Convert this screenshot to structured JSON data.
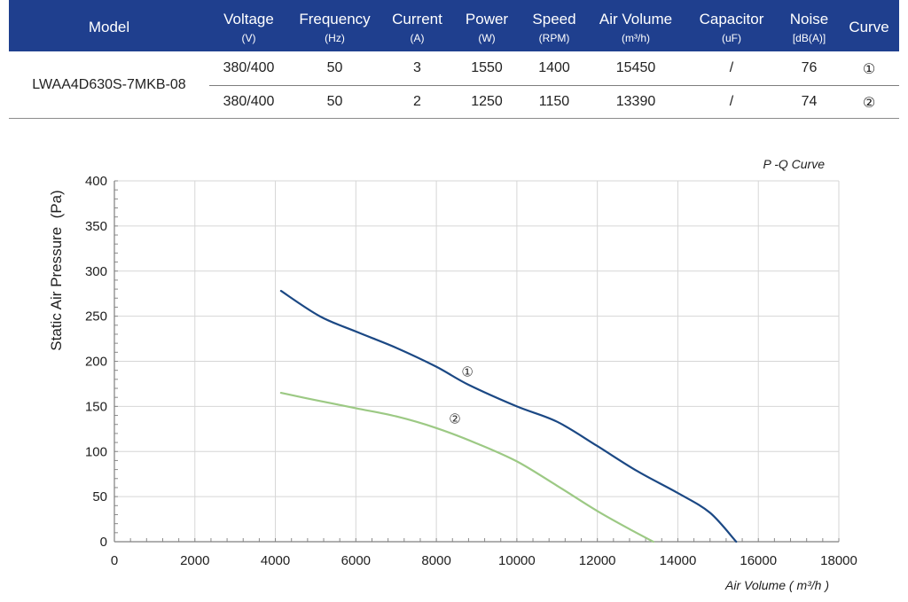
{
  "colors": {
    "header_bg": "#1f3f8e",
    "header_text": "#ffffff"
  },
  "spec_table": {
    "columns": [
      {
        "label": "Model"
      },
      {
        "label": "Voltage",
        "unit": "(V)"
      },
      {
        "label": "Frequency",
        "unit": "(Hz)"
      },
      {
        "label": "Current",
        "unit": "(A)"
      },
      {
        "label": "Power",
        "unit": "(W)"
      },
      {
        "label": "Speed",
        "unit": "(RPM)"
      },
      {
        "label": "Air Volume",
        "unit": "(m³/h)"
      },
      {
        "label": "Capacitor",
        "unit": "(uF)"
      },
      {
        "label": "Noise",
        "unit": "[dB(A)]"
      },
      {
        "label": "Curve"
      }
    ],
    "model": "LWAA4D630S-7MKB-08",
    "rows": [
      {
        "voltage": "380/400",
        "frequency": "50",
        "current": "3",
        "power": "1550",
        "speed": "1400",
        "air_volume": "15450",
        "capacitor": "/",
        "noise": "76",
        "curve": "①"
      },
      {
        "voltage": "380/400",
        "frequency": "50",
        "current": "2",
        "power": "1250",
        "speed": "1150",
        "air_volume": "13390",
        "capacitor": "/",
        "noise": "74",
        "curve": "②"
      }
    ]
  },
  "chart_data": {
    "type": "line",
    "title": "P -Q Curve",
    "xlabel": "Air Volume ( m³/h )",
    "ylabel": "Static Air Pressure  (Pa)",
    "xlim": [
      0,
      18000
    ],
    "ylim": [
      0,
      400
    ],
    "xticks": [
      0,
      2000,
      4000,
      6000,
      8000,
      10000,
      12000,
      14000,
      16000,
      18000
    ],
    "yticks": [
      0,
      50,
      100,
      150,
      200,
      250,
      300,
      350,
      400
    ],
    "grid": true,
    "series": [
      {
        "name": "①",
        "color": "#1b4884",
        "x": [
          4140,
          5100,
          6000,
          7000,
          8000,
          8800,
          10000,
          11000,
          12000,
          13000,
          14000,
          14800,
          15450
        ],
        "y": [
          278,
          250,
          233,
          215,
          194,
          174,
          150,
          133,
          106,
          78,
          54,
          32,
          0
        ]
      },
      {
        "name": "②",
        "color": "#9cc984",
        "x": [
          4140,
          5000,
          6000,
          7000,
          8000,
          9000,
          10000,
          11000,
          12000,
          12800,
          13390
        ],
        "y": [
          165,
          157,
          148,
          139,
          126,
          109,
          89,
          62,
          34,
          14,
          0
        ]
      }
    ]
  }
}
